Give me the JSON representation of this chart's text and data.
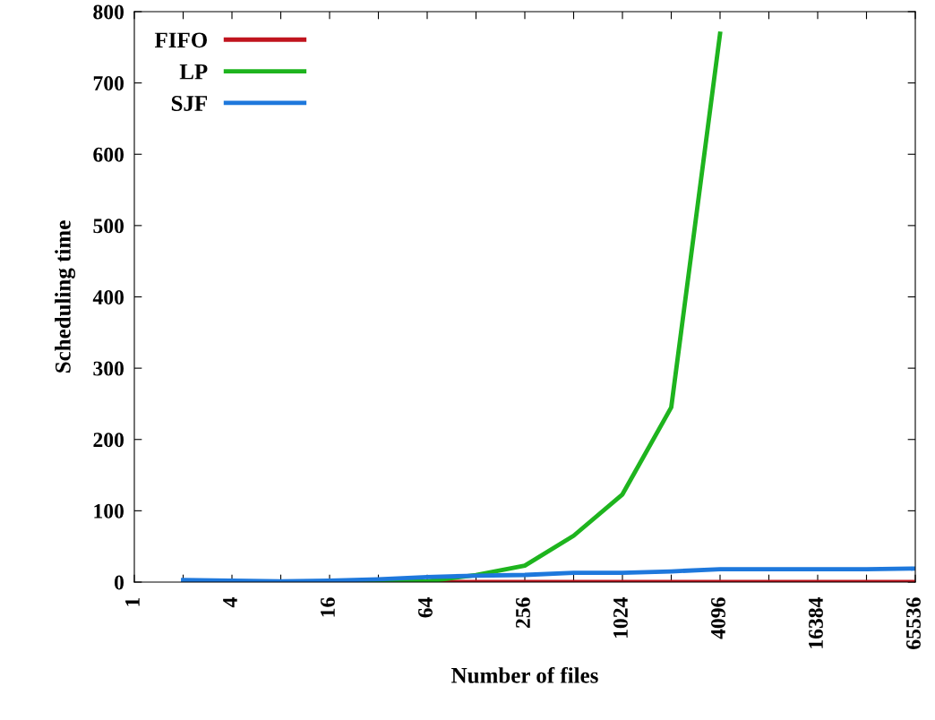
{
  "chart_data": {
    "type": "line",
    "xlabel": "Number of files",
    "ylabel": "Scheduling time",
    "log": "x",
    "x": [
      2,
      4,
      8,
      16,
      32,
      64,
      128,
      256,
      512,
      1024,
      2048,
      4096,
      8192,
      16384,
      32768,
      65536
    ],
    "series": [
      {
        "name": "FIFO",
        "color": "#c0141e",
        "values": [
          null,
          null,
          null,
          null,
          0,
          0,
          0,
          0,
          0,
          0,
          0,
          0,
          0,
          0,
          0,
          0
        ]
      },
      {
        "name": "LP",
        "color": "#1eb41e",
        "values": [
          null,
          null,
          null,
          0,
          0,
          1,
          10,
          23,
          65,
          123,
          245,
          769,
          null,
          null,
          null,
          null
        ]
      },
      {
        "name": "SJF",
        "color": "#1e78dc",
        "values": [
          3,
          2,
          1,
          2,
          4,
          7,
          9,
          10,
          13,
          13,
          15,
          18,
          18,
          18,
          18,
          19
        ]
      }
    ],
    "xlim": [
      1,
      65536
    ],
    "ylim": [
      0,
      800
    ],
    "xticks": [
      1,
      {
        "value": 2,
        "label": null
      },
      4,
      {
        "value": 8,
        "label": null
      },
      16,
      {
        "value": 32,
        "label": null
      },
      64,
      {
        "value": 128,
        "label": null
      },
      256,
      {
        "value": 512,
        "label": null
      },
      1024,
      {
        "value": 2048,
        "label": null
      },
      4096,
      {
        "value": 8192,
        "label": null
      },
      16384,
      {
        "value": 32768,
        "label": null
      },
      65536
    ],
    "yticks": [
      0,
      100,
      200,
      300,
      400,
      500,
      600,
      700,
      800
    ],
    "grid": false,
    "legend": "top left",
    "marker": "none",
    "line_style": "solid"
  }
}
